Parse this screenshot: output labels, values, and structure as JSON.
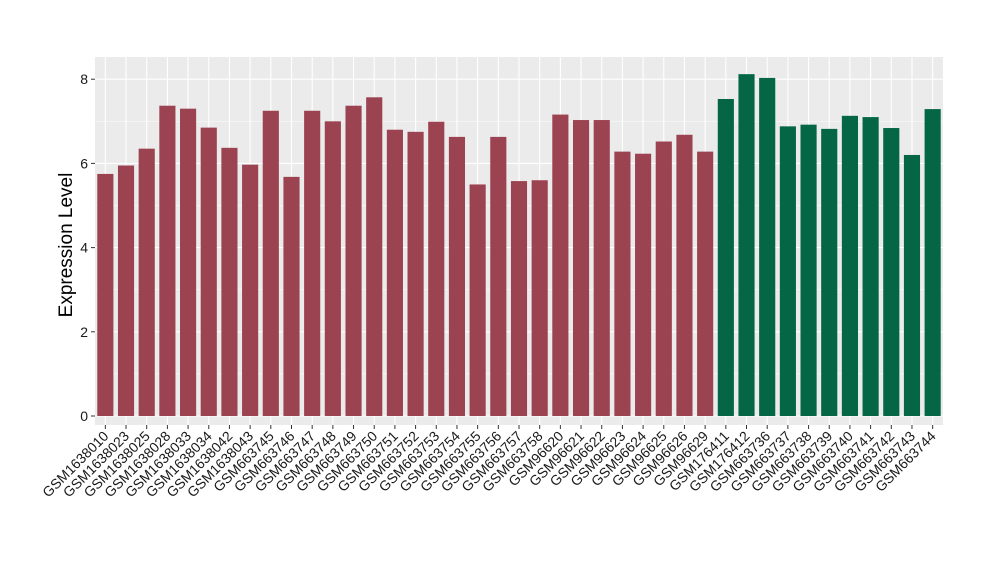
{
  "chart_data": {
    "type": "bar",
    "title": "",
    "xlabel": "",
    "ylabel": "Expression Level",
    "ylim": [
      0,
      8.4
    ],
    "yticks": [
      0,
      2,
      4,
      6,
      8
    ],
    "grid": true,
    "legend": "none",
    "colors": {
      "group1": "#9b4350",
      "group2": "#046645",
      "panel": "#ebebeb",
      "grid": "#ffffff"
    },
    "categories": [
      "GSM1638010",
      "GSM1638023",
      "GSM1638025",
      "GSM1638028",
      "GSM1638033",
      "GSM1638034",
      "GSM1638042",
      "GSM1638043",
      "GSM663745",
      "GSM663746",
      "GSM663747",
      "GSM663748",
      "GSM663749",
      "GSM663750",
      "GSM663751",
      "GSM663752",
      "GSM663753",
      "GSM663754",
      "GSM663755",
      "GSM663756",
      "GSM663757",
      "GSM663758",
      "GSM96620",
      "GSM96621",
      "GSM96622",
      "GSM96623",
      "GSM96624",
      "GSM96625",
      "GSM96626",
      "GSM96629",
      "GSM176411",
      "GSM176412",
      "GSM663736",
      "GSM663737",
      "GSM663738",
      "GSM663739",
      "GSM663740",
      "GSM663741",
      "GSM663742",
      "GSM663743",
      "GSM663744"
    ],
    "values": [
      5.75,
      5.95,
      6.35,
      7.37,
      7.3,
      6.85,
      6.37,
      5.97,
      7.25,
      5.68,
      7.25,
      7.0,
      7.37,
      7.57,
      6.8,
      6.75,
      6.99,
      6.63,
      5.5,
      6.63,
      5.58,
      5.6,
      7.16,
      7.03,
      7.03,
      6.28,
      6.23,
      6.52,
      6.68,
      6.28,
      7.53,
      8.12,
      8.03,
      6.88,
      6.92,
      6.82,
      7.13,
      7.1,
      6.84,
      6.2,
      7.29
    ],
    "groups": [
      1,
      1,
      1,
      1,
      1,
      1,
      1,
      1,
      1,
      1,
      1,
      1,
      1,
      1,
      1,
      1,
      1,
      1,
      1,
      1,
      1,
      1,
      1,
      1,
      1,
      1,
      1,
      1,
      1,
      1,
      2,
      2,
      2,
      2,
      2,
      2,
      2,
      2,
      2,
      2,
      2
    ]
  }
}
